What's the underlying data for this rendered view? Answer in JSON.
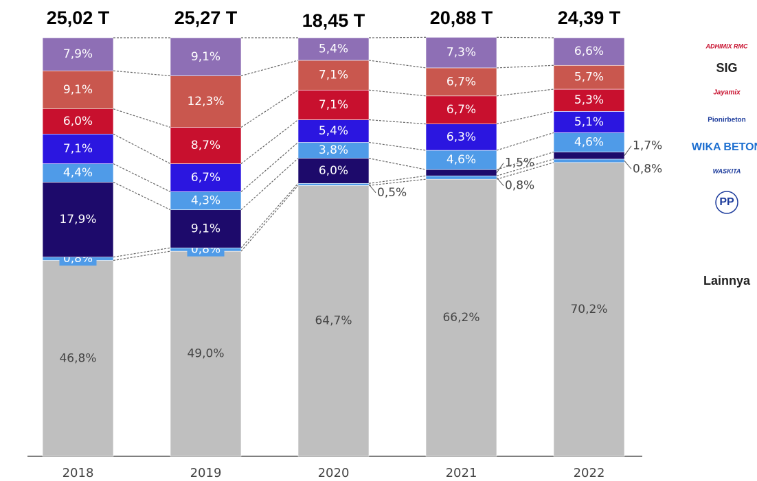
{
  "chart_data": {
    "type": "stacked_bar_100",
    "categories": [
      "2018",
      "2019",
      "2020",
      "2021",
      "2022"
    ],
    "total_labels": [
      "25,02 T",
      "25,27 T",
      "18,45 T",
      "20,88 T",
      "24,39 T"
    ],
    "ylim": [
      0,
      100
    ],
    "series": [
      {
        "name": "Lainnya",
        "color": "#bfbfbf",
        "values": [
          46.8,
          49.0,
          64.7,
          66.2,
          70.2
        ],
        "value_labels": [
          "46,8%",
          "49,0%",
          "64,7%",
          "66,2%",
          "70,2%"
        ]
      },
      {
        "name": "PP",
        "color": "#4f9be8",
        "values": [
          0.8,
          0.8,
          0.5,
          0.8,
          0.8
        ],
        "value_labels": [
          "0,8%",
          "0,8%",
          "0,5%",
          "0,8%",
          "0,8%"
        ]
      },
      {
        "name": "WASKITA",
        "color": "#1d0a6b",
        "values": [
          17.9,
          9.1,
          6.0,
          1.5,
          1.7
        ],
        "value_labels": [
          "17,9%",
          "9,1%",
          "6,0%",
          "1,5%",
          "1,7%"
        ]
      },
      {
        "name": "WIKA BETON",
        "color": "#4f9be8",
        "values": [
          4.4,
          4.3,
          3.8,
          4.6,
          4.6
        ],
        "value_labels": [
          "4,4%",
          "4,3%",
          "3,8%",
          "4,6%",
          "4,6%"
        ]
      },
      {
        "name": "Pionirbeton",
        "color": "#2b16e0",
        "values": [
          7.1,
          6.7,
          5.4,
          6.3,
          5.1
        ],
        "value_labels": [
          "7,1%",
          "6,7%",
          "5,4%",
          "6,3%",
          "5,1%"
        ]
      },
      {
        "name": "Jayamix",
        "color": "#c8102e",
        "values": [
          6.0,
          8.7,
          7.1,
          6.7,
          5.3
        ],
        "value_labels": [
          "6,0%",
          "8,7%",
          "7,1%",
          "6,7%",
          "5,3%"
        ]
      },
      {
        "name": "SIG",
        "color": "#c9574e",
        "values": [
          9.1,
          12.3,
          7.1,
          6.7,
          5.7
        ],
        "value_labels": [
          "9,1%",
          "12,3%",
          "7,1%",
          "6,7%",
          "5,7%"
        ]
      },
      {
        "name": "ADHIMIX RMC",
        "color": "#8e6fb5",
        "values": [
          7.9,
          9.1,
          5.4,
          7.3,
          6.6
        ],
        "value_labels": [
          "7,9%",
          "9,1%",
          "5,4%",
          "7,3%",
          "6,6%"
        ]
      }
    ]
  }
}
